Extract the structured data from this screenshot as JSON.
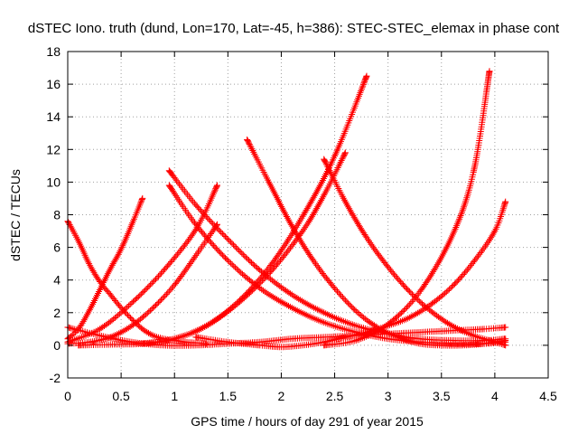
{
  "chart_data": {
    "type": "scatter",
    "title": "dSTEC Iono. truth (dund, Lon=170, Lat=-45, h=386): STEC-STEC_elemax in phase cont",
    "xlabel": "GPS time / hours of day 291 of year 2015",
    "ylabel": "dSTEC  / TECUs",
    "xlim": [
      0,
      4.5
    ],
    "ylim": [
      -2,
      18
    ],
    "xticks": [
      0,
      0.5,
      1,
      1.5,
      2,
      2.5,
      3,
      3.5,
      4,
      4.5
    ],
    "xtick_labels": [
      "0",
      "0.5",
      "1",
      "1.5",
      "2",
      "2.5",
      "3",
      "3.5",
      "4",
      "4.5"
    ],
    "yticks": [
      -2,
      0,
      2,
      4,
      6,
      8,
      10,
      12,
      14,
      16,
      18
    ],
    "ytick_labels": [
      "-2",
      "0",
      "2",
      "4",
      "6",
      "8",
      "10",
      "12",
      "14",
      "16",
      "18"
    ],
    "grid": true,
    "marker": "plus",
    "color": "#ff0000",
    "series": [
      {
        "x": [
          0.0,
          0.1,
          0.2,
          0.3,
          0.4,
          0.5,
          0.6,
          0.7,
          0.8,
          0.9,
          1.0,
          1.1,
          1.2,
          1.3
        ],
        "y": [
          7.6,
          6.4,
          5.0,
          3.9,
          3.1,
          2.3,
          1.6,
          1.0,
          0.6,
          0.4,
          0.3,
          0.2,
          0.15,
          0.1
        ]
      },
      {
        "x": [
          0.0,
          0.1,
          0.2,
          0.3,
          0.4,
          0.5,
          0.6,
          0.7
        ],
        "y": [
          0.4,
          1.0,
          2.1,
          3.4,
          4.7,
          5.9,
          7.4,
          9.0
        ]
      },
      {
        "x": [
          0.0,
          0.2,
          0.4,
          0.6,
          0.8,
          1.0,
          1.2,
          1.4
        ],
        "y": [
          0.1,
          0.2,
          0.5,
          1.2,
          2.3,
          3.7,
          5.5,
          7.4
        ]
      },
      {
        "x": [
          0.0,
          0.3,
          0.6,
          0.9,
          1.2,
          1.5,
          1.8,
          2.1,
          2.4,
          2.7,
          3.0,
          3.3,
          3.6,
          3.9,
          4.1
        ],
        "y": [
          1.1,
          0.6,
          0.2,
          0.0,
          0.0,
          0.1,
          0.2,
          0.4,
          0.5,
          0.6,
          0.7,
          0.8,
          0.9,
          1.0,
          1.1
        ]
      },
      {
        "x": [
          0.0,
          0.3,
          0.6,
          0.9,
          1.2,
          1.4
        ],
        "y": [
          0.2,
          1.0,
          2.6,
          4.6,
          7.1,
          9.8
        ]
      },
      {
        "x": [
          0.1,
          0.4,
          0.7,
          1.0,
          1.3,
          1.6,
          1.9,
          2.2,
          2.4,
          2.6
        ],
        "y": [
          0.0,
          0.05,
          0.1,
          0.4,
          1.2,
          2.6,
          4.5,
          7.0,
          9.2,
          11.8
        ]
      },
      {
        "x": [
          0.95,
          1.2,
          1.5,
          1.8,
          2.1,
          2.4,
          2.7,
          3.0,
          3.3,
          3.6,
          3.9,
          4.1
        ],
        "y": [
          10.7,
          8.6,
          6.5,
          4.6,
          3.1,
          2.0,
          1.2,
          0.7,
          0.4,
          0.3,
          0.3,
          0.4
        ]
      },
      {
        "x": [
          0.95,
          1.2,
          1.5,
          1.8,
          2.1,
          2.4,
          2.7,
          3.0,
          3.3,
          3.6,
          3.9,
          4.1
        ],
        "y": [
          9.8,
          7.4,
          5.2,
          3.5,
          2.3,
          1.4,
          0.8,
          0.4,
          0.2,
          0.1,
          0.1,
          0.2
        ]
      },
      {
        "x": [
          0.7,
          1.0,
          1.3,
          1.6,
          1.9,
          2.2,
          2.5,
          2.8
        ],
        "y": [
          0.1,
          0.4,
          1.2,
          2.7,
          4.9,
          7.9,
          11.6,
          16.5
        ]
      },
      {
        "x": [
          1.68,
          1.9,
          2.1,
          2.3,
          2.5,
          2.7,
          2.9,
          3.1,
          3.3,
          3.5,
          3.7,
          3.9,
          4.1
        ],
        "y": [
          12.6,
          9.8,
          7.3,
          5.2,
          3.5,
          2.1,
          1.1,
          0.5,
          0.1,
          0.0,
          0.0,
          0.1,
          0.3
        ]
      },
      {
        "x": [
          1.2,
          1.5,
          1.8,
          2.0,
          2.2,
          2.4,
          2.6,
          2.8,
          3.0,
          3.2,
          3.4,
          3.6,
          3.8,
          4.0,
          4.1
        ],
        "y": [
          0.5,
          0.2,
          0.0,
          -0.1,
          0.0,
          0.2,
          0.5,
          0.8,
          1.2,
          1.7,
          2.5,
          3.6,
          5.1,
          7.0,
          8.8
        ]
      },
      {
        "x": [
          2.4,
          2.6,
          2.8,
          3.0,
          3.2,
          3.4,
          3.6,
          3.8,
          4.0,
          4.1
        ],
        "y": [
          11.4,
          8.8,
          6.6,
          4.8,
          3.3,
          2.1,
          1.2,
          0.6,
          0.2,
          0.0
        ]
      },
      {
        "x": [
          2.4,
          2.7,
          3.0,
          3.3,
          3.6,
          3.8,
          3.95
        ],
        "y": [
          0.0,
          0.3,
          1.3,
          3.3,
          6.7,
          10.6,
          16.8
        ]
      }
    ]
  }
}
